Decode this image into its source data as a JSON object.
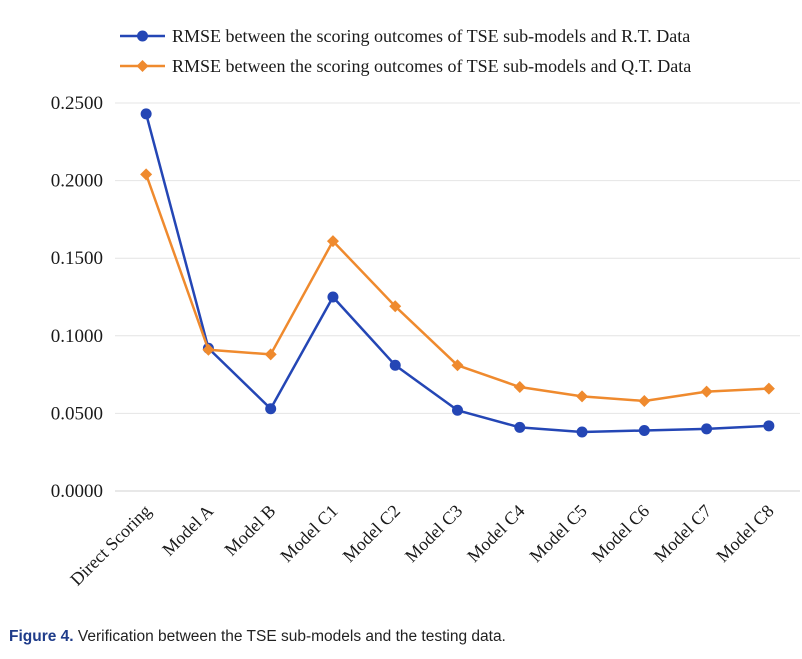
{
  "chart_data": {
    "type": "line",
    "categories": [
      "Direct Scoring",
      "Model A",
      "Model B",
      "Model C1",
      "Model C2",
      "Model C3",
      "Model C4",
      "Model C5",
      "Model C6",
      "Model C7",
      "Model C8"
    ],
    "series": [
      {
        "name": "RMSE between the scoring outcomes of TSE sub-models and R.T. Data",
        "color": "#2446b5",
        "marker": "circle",
        "values": [
          0.243,
          0.092,
          0.053,
          0.125,
          0.081,
          0.052,
          0.041,
          0.038,
          0.039,
          0.04,
          0.042
        ]
      },
      {
        "name": "RMSE between the scoring outcomes of TSE sub-models and Q.T. Data",
        "color": "#ef8a2e",
        "marker": "diamond",
        "values": [
          0.204,
          0.091,
          0.088,
          0.161,
          0.119,
          0.081,
          0.067,
          0.061,
          0.058,
          0.064,
          0.066
        ]
      }
    ],
    "yticks": [
      "0.0000",
      "0.0500",
      "0.1000",
      "0.1500",
      "0.2000",
      "0.2500"
    ],
    "ylim": [
      0,
      0.25
    ],
    "grid": true,
    "legend": "top"
  },
  "caption": {
    "label": "Figure 4.",
    "text": " Verification between the TSE sub-models and the testing data."
  }
}
